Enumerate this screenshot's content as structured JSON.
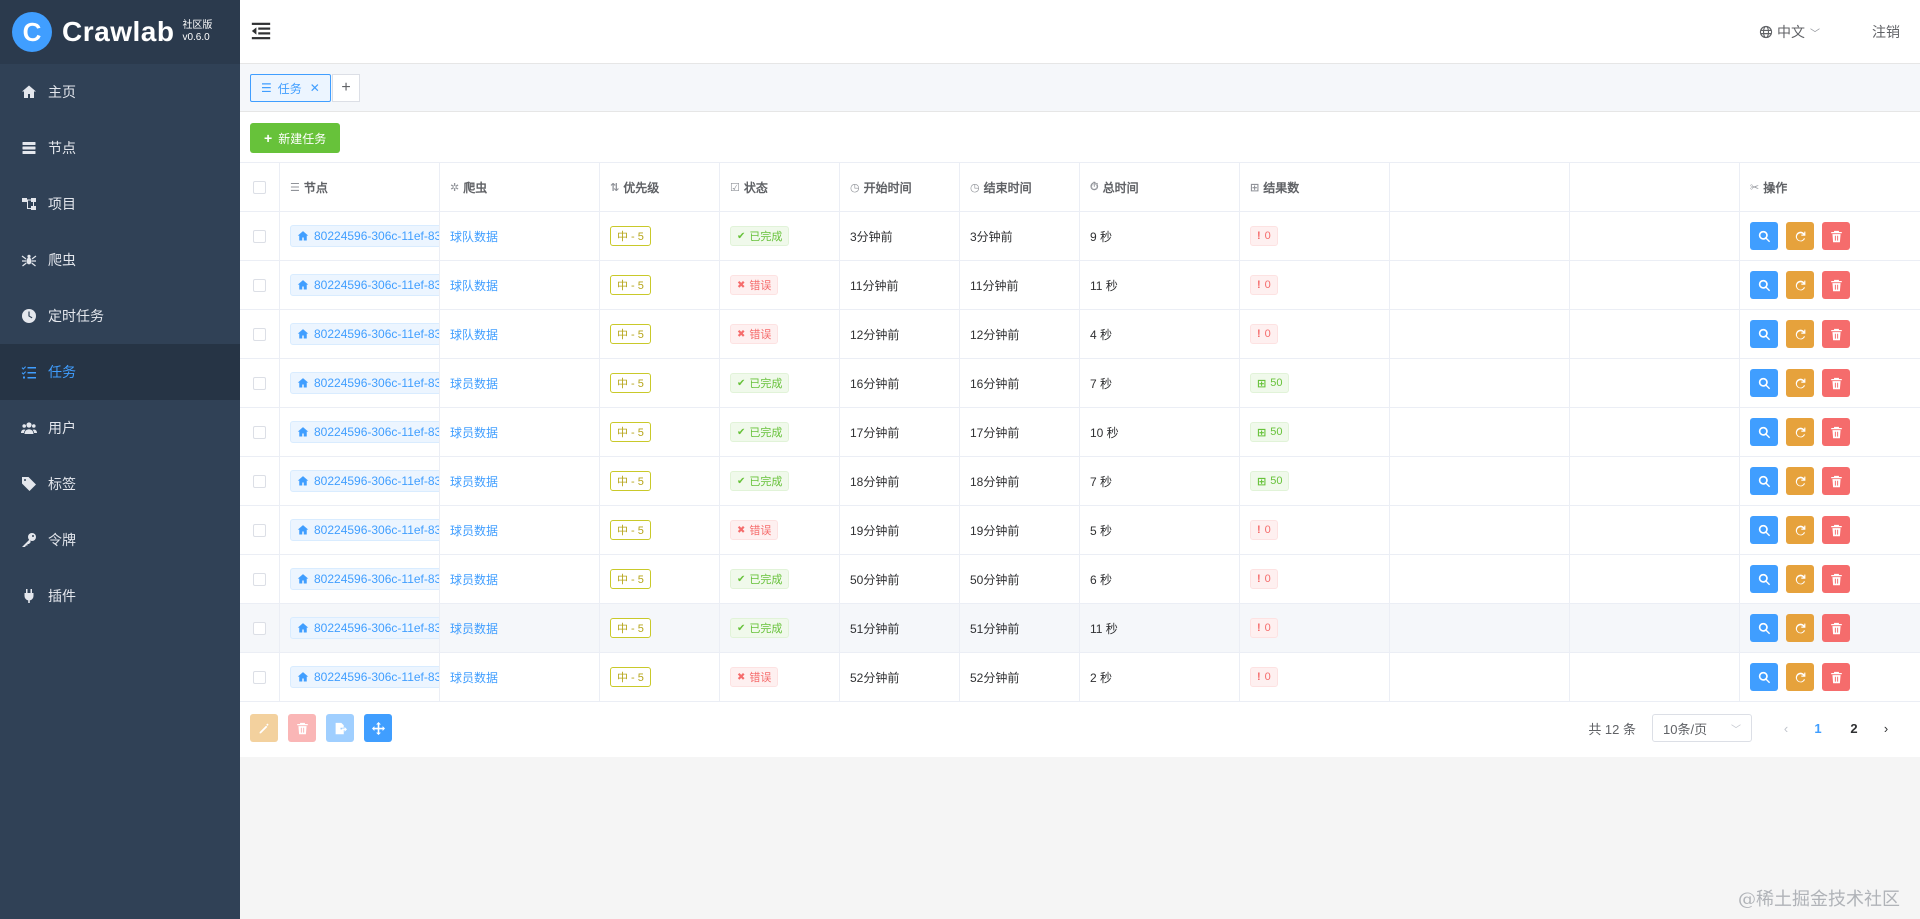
{
  "brand": {
    "logo_letter": "C",
    "name": "Crawlab",
    "edition": "社区版",
    "version": "v0.6.0"
  },
  "sidebar": {
    "items": [
      {
        "label": "主页",
        "icon": "home-icon"
      },
      {
        "label": "节点",
        "icon": "server-icon"
      },
      {
        "label": "项目",
        "icon": "project-icon"
      },
      {
        "label": "爬虫",
        "icon": "spider-icon"
      },
      {
        "label": "定时任务",
        "icon": "clock-icon"
      },
      {
        "label": "任务",
        "icon": "tasks-icon",
        "active": true
      },
      {
        "label": "用户",
        "icon": "users-icon"
      },
      {
        "label": "标签",
        "icon": "tag-icon"
      },
      {
        "label": "令牌",
        "icon": "key-icon"
      },
      {
        "label": "插件",
        "icon": "plug-icon"
      }
    ]
  },
  "header": {
    "language": "中文",
    "logout": "注销"
  },
  "tabs": [
    {
      "label": "任务"
    }
  ],
  "toolbar": {
    "new_task": "新建任务"
  },
  "table": {
    "columns": {
      "node": "节点",
      "spider": "爬虫",
      "priority": "优先级",
      "status": "状态",
      "start": "开始时间",
      "end": "结束时间",
      "total": "总时间",
      "results": "结果数",
      "ops": "操作"
    },
    "rows": [
      {
        "node": "80224596-306c-11ef-83",
        "spider": "球队数据",
        "priority": "中 - 5",
        "status": "已完成",
        "status_type": "ok",
        "start": "3分钟前",
        "end": "3分钟前",
        "total": "9 秒",
        "results": "0",
        "res_type": "zero"
      },
      {
        "node": "80224596-306c-11ef-83",
        "spider": "球队数据",
        "priority": "中 - 5",
        "status": "错误",
        "status_type": "err",
        "start": "11分钟前",
        "end": "11分钟前",
        "total": "11 秒",
        "results": "0",
        "res_type": "zero"
      },
      {
        "node": "80224596-306c-11ef-83",
        "spider": "球队数据",
        "priority": "中 - 5",
        "status": "错误",
        "status_type": "err",
        "start": "12分钟前",
        "end": "12分钟前",
        "total": "4 秒",
        "results": "0",
        "res_type": "zero"
      },
      {
        "node": "80224596-306c-11ef-83",
        "spider": "球员数据",
        "priority": "中 - 5",
        "status": "已完成",
        "status_type": "ok",
        "start": "16分钟前",
        "end": "16分钟前",
        "total": "7 秒",
        "results": "50",
        "res_type": "ok"
      },
      {
        "node": "80224596-306c-11ef-83",
        "spider": "球员数据",
        "priority": "中 - 5",
        "status": "已完成",
        "status_type": "ok",
        "start": "17分钟前",
        "end": "17分钟前",
        "total": "10 秒",
        "results": "50",
        "res_type": "ok"
      },
      {
        "node": "80224596-306c-11ef-83",
        "spider": "球员数据",
        "priority": "中 - 5",
        "status": "已完成",
        "status_type": "ok",
        "start": "18分钟前",
        "end": "18分钟前",
        "total": "7 秒",
        "results": "50",
        "res_type": "ok"
      },
      {
        "node": "80224596-306c-11ef-83",
        "spider": "球员数据",
        "priority": "中 - 5",
        "status": "错误",
        "status_type": "err",
        "start": "19分钟前",
        "end": "19分钟前",
        "total": "5 秒",
        "results": "0",
        "res_type": "zero"
      },
      {
        "node": "80224596-306c-11ef-83",
        "spider": "球员数据",
        "priority": "中 - 5",
        "status": "已完成",
        "status_type": "ok",
        "start": "50分钟前",
        "end": "50分钟前",
        "total": "6 秒",
        "results": "0",
        "res_type": "zero"
      },
      {
        "node": "80224596-306c-11ef-83",
        "spider": "球员数据",
        "priority": "中 - 5",
        "status": "已完成",
        "status_type": "ok",
        "start": "51分钟前",
        "end": "51分钟前",
        "total": "11 秒",
        "results": "0",
        "res_type": "zero"
      },
      {
        "node": "80224596-306c-11ef-83",
        "spider": "球员数据",
        "priority": "中 - 5",
        "status": "错误",
        "status_type": "err",
        "start": "52分钟前",
        "end": "52分钟前",
        "total": "2 秒",
        "results": "0",
        "res_type": "zero"
      }
    ]
  },
  "pagination": {
    "total": "共 12 条",
    "page_size": "10条/页",
    "pages": [
      "1",
      "2"
    ],
    "current": "1"
  },
  "watermark": "@稀土掘金技术社区",
  "colors": {
    "primary": "#409eff",
    "success": "#67c23a",
    "warning": "#e6a23c",
    "danger": "#f56c6c",
    "sidebar": "#304156"
  }
}
